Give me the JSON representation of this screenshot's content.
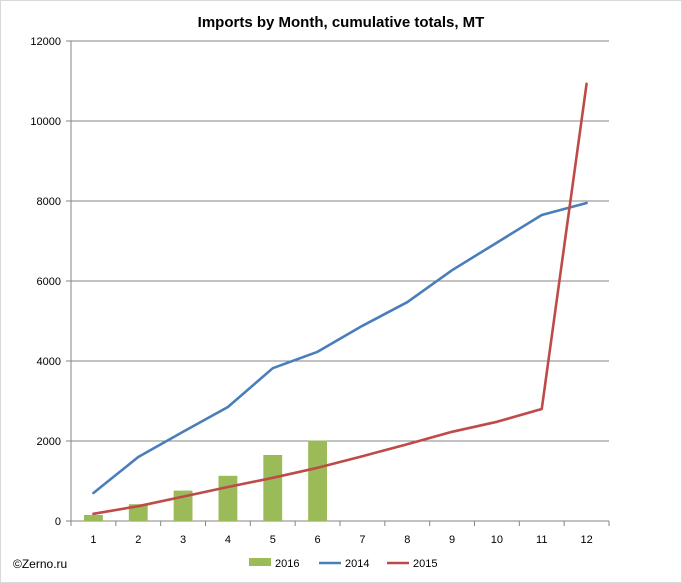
{
  "chart_data": {
    "type": "bar+line",
    "title": "Imports by Month, cumulative totals, MT",
    "xlabel": "",
    "ylabel": "",
    "categories": [
      "1",
      "2",
      "3",
      "4",
      "5",
      "6",
      "7",
      "8",
      "9",
      "10",
      "11",
      "12"
    ],
    "ylim": [
      0,
      12000
    ],
    "y_ticks": [
      "0",
      "2000",
      "4000",
      "6000",
      "8000",
      "10000",
      "12000"
    ],
    "grid": "horizontal",
    "legend_position": "bottom",
    "series": [
      {
        "name": "2016",
        "type": "bar",
        "color": "#9bbb59",
        "values": [
          150,
          420,
          760,
          1130,
          1650,
          2010,
          null,
          null,
          null,
          null,
          null,
          null
        ]
      },
      {
        "name": "2014",
        "type": "line",
        "color": "#4a7ebb",
        "values": [
          700,
          1600,
          2230,
          2850,
          3820,
          4230,
          4880,
          5470,
          6270,
          6960,
          7650,
          7950
        ]
      },
      {
        "name": "2015",
        "type": "line",
        "color": "#be4b48",
        "values": [
          180,
          370,
          610,
          850,
          1080,
          1330,
          1620,
          1920,
          2230,
          2480,
          2800,
          10930
        ]
      }
    ],
    "credit": "©Zerno.ru"
  }
}
